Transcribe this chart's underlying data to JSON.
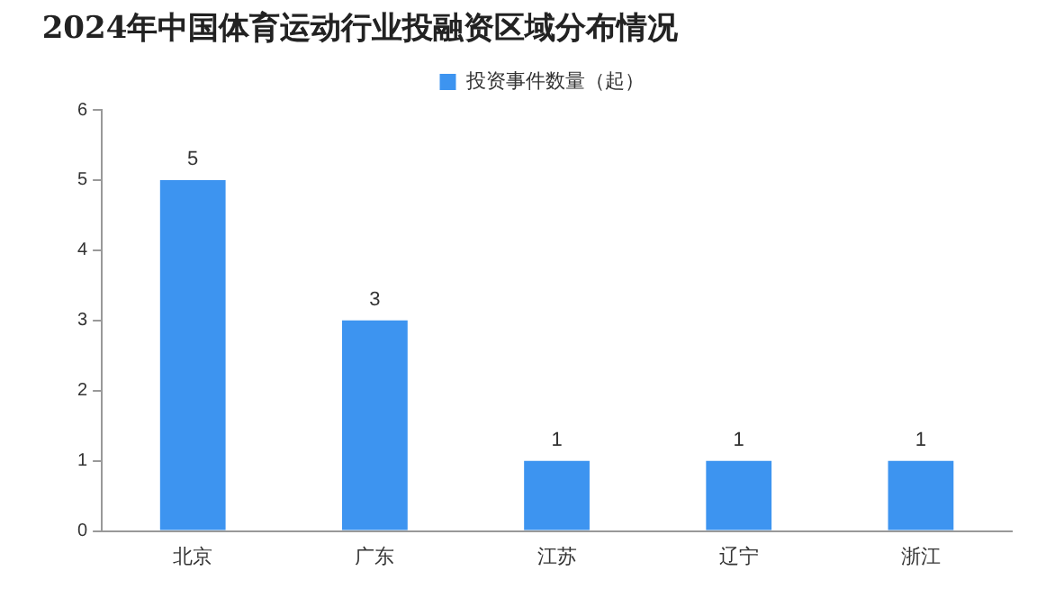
{
  "chart_data": {
    "type": "bar",
    "title": "2024年中国体育运动行业投融资区域分布情况",
    "categories": [
      "北京",
      "广东",
      "江苏",
      "辽宁",
      "浙江"
    ],
    "series": [
      {
        "name": "投资事件数量（起）",
        "color": "#3d94f0",
        "values": [
          5,
          3,
          1,
          1,
          1
        ]
      }
    ],
    "ylim": [
      0,
      6
    ],
    "yticks": [
      0,
      1,
      2,
      3,
      4,
      5,
      6
    ],
    "grid": false,
    "legend": "top",
    "data_labels": true
  }
}
